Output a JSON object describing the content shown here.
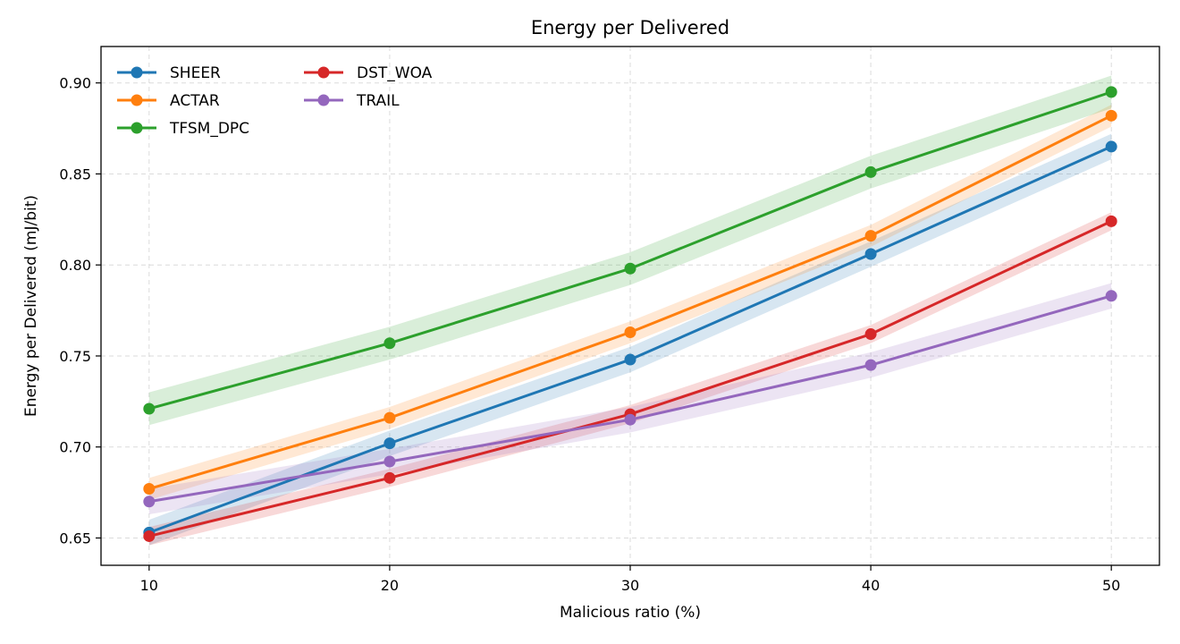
{
  "chart_data": {
    "type": "line",
    "title": "Energy per Delivered",
    "xlabel": "Malicious ratio (%)",
    "ylabel": "Energy per Delivered (mJ/bit)",
    "x": [
      10,
      20,
      30,
      40,
      50
    ],
    "x_ticks": [
      "10",
      "20",
      "30",
      "40",
      "50"
    ],
    "xlim": [
      8,
      52
    ],
    "y_ticks": [
      "0.65",
      "0.70",
      "0.75",
      "0.80",
      "0.85",
      "0.90"
    ],
    "ylim": [
      0.635,
      0.92
    ],
    "grid": true,
    "legend_position": "upper left",
    "series": [
      {
        "name": "SHEER",
        "color": "#1f77b4",
        "values": [
          0.653,
          0.702,
          0.748,
          0.806,
          0.865
        ],
        "band": 0.007
      },
      {
        "name": "ACTAR",
        "color": "#ff7f0e",
        "values": [
          0.677,
          0.716,
          0.763,
          0.816,
          0.882
        ],
        "band": 0.006
      },
      {
        "name": "TFSM_DPC",
        "color": "#2ca02c",
        "values": [
          0.721,
          0.757,
          0.798,
          0.851,
          0.895
        ],
        "band": 0.009
      },
      {
        "name": "DST_WOA",
        "color": "#d62728",
        "values": [
          0.651,
          0.683,
          0.718,
          0.762,
          0.824
        ],
        "band": 0.005
      },
      {
        "name": "TRAIL",
        "color": "#9467bd",
        "values": [
          0.67,
          0.692,
          0.715,
          0.745,
          0.783
        ],
        "band": 0.007
      }
    ]
  }
}
